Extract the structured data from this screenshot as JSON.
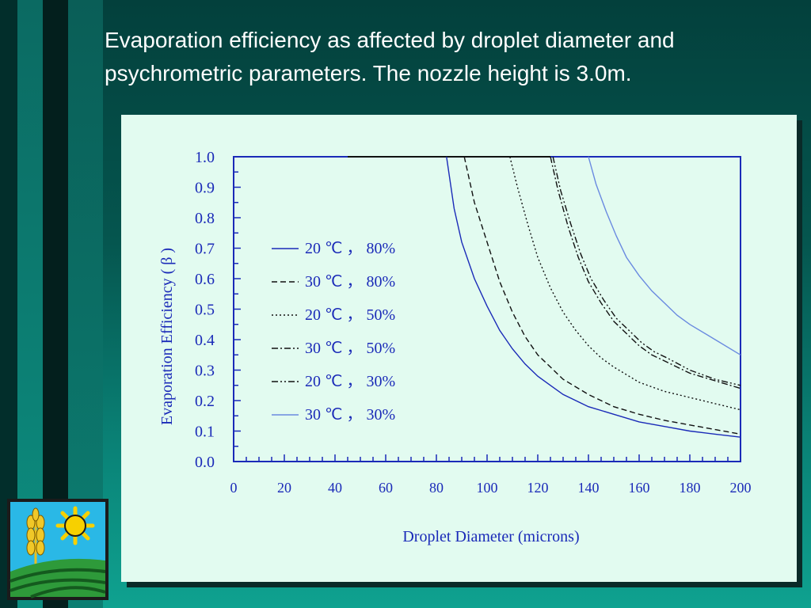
{
  "slide": {
    "title_line1": "Evaporation efficiency as affected by droplet diameter and",
    "title_line2": "psychrometric parameters. The nozzle height is 3.0m."
  },
  "colors": {
    "background_dark": "#03403c",
    "background_light": "#0fa290",
    "panel": "#e2fbf0",
    "axis": "#1a2ab8",
    "series_dark": "#0a1580"
  },
  "logo": {
    "icons": [
      "sun-icon",
      "wheat-icon",
      "field-icon"
    ]
  },
  "chart_data": {
    "type": "line",
    "xlabel": "Droplet Diameter (microns)",
    "ylabel": "Evaporation Efficiency ( β )",
    "xlim": [
      0,
      200
    ],
    "ylim": [
      0.0,
      1.0
    ],
    "xticks": [
      "0",
      "20",
      "40",
      "60",
      "80",
      "100",
      "120",
      "140",
      "160",
      "180",
      "200"
    ],
    "yticks": [
      "0.0",
      "0.1",
      "0.2",
      "0.3",
      "0.4",
      "0.5",
      "0.6",
      "0.7",
      "0.8",
      "0.9",
      "1.0"
    ],
    "legend_position": "left-center",
    "series": [
      {
        "name": "20 ℃ ， 80%",
        "style": "solid",
        "color": "#1a2ab8",
        "x": [
          84,
          87,
          90,
          95,
          100,
          105,
          110,
          115,
          120,
          125,
          130,
          140,
          150,
          160,
          170,
          180,
          190,
          200
        ],
        "y": [
          1.0,
          0.83,
          0.72,
          0.6,
          0.51,
          0.43,
          0.37,
          0.32,
          0.28,
          0.25,
          0.22,
          0.18,
          0.155,
          0.13,
          0.115,
          0.1,
          0.09,
          0.08
        ]
      },
      {
        "name": "30 ℃ ， 80%",
        "style": "dashed",
        "color": "#111111",
        "x": [
          91,
          95,
          100,
          105,
          110,
          115,
          120,
          125,
          130,
          140,
          150,
          160,
          170,
          180,
          190,
          200
        ],
        "y": [
          1.0,
          0.85,
          0.72,
          0.59,
          0.49,
          0.41,
          0.35,
          0.31,
          0.27,
          0.22,
          0.18,
          0.155,
          0.135,
          0.12,
          0.105,
          0.09
        ]
      },
      {
        "name": "20 ℃ ， 50%",
        "style": "dotted",
        "color": "#111111",
        "x": [
          109,
          112,
          116,
          120,
          125,
          130,
          135,
          140,
          145,
          150,
          160,
          170,
          180,
          190,
          200
        ],
        "y": [
          1.0,
          0.9,
          0.78,
          0.67,
          0.57,
          0.49,
          0.43,
          0.38,
          0.34,
          0.31,
          0.26,
          0.23,
          0.21,
          0.19,
          0.17
        ]
      },
      {
        "name": "30 ℃ ， 50%",
        "style": "dashdot",
        "color": "#111111",
        "x": [
          125,
          128,
          132,
          136,
          140,
          145,
          150,
          155,
          160,
          165,
          170,
          180,
          190,
          200
        ],
        "y": [
          1.0,
          0.89,
          0.77,
          0.67,
          0.59,
          0.52,
          0.46,
          0.42,
          0.38,
          0.35,
          0.33,
          0.29,
          0.265,
          0.24
        ]
      },
      {
        "name": "20 ℃ ， 30%",
        "style": "dashdotdot",
        "color": "#111111",
        "x": [
          126,
          129,
          133,
          137,
          141,
          146,
          151,
          156,
          161,
          166,
          171,
          180,
          190,
          200
        ],
        "y": [
          1.0,
          0.89,
          0.78,
          0.68,
          0.6,
          0.53,
          0.47,
          0.43,
          0.39,
          0.36,
          0.34,
          0.3,
          0.27,
          0.25
        ]
      },
      {
        "name": "30 ℃ ， 30%",
        "style": "solid",
        "color": "#6a8ae0",
        "x": [
          140,
          143,
          147,
          151,
          155,
          160,
          165,
          170,
          175,
          180,
          190,
          200
        ],
        "y": [
          1.0,
          0.91,
          0.82,
          0.74,
          0.67,
          0.61,
          0.56,
          0.52,
          0.48,
          0.45,
          0.4,
          0.35
        ]
      }
    ]
  }
}
